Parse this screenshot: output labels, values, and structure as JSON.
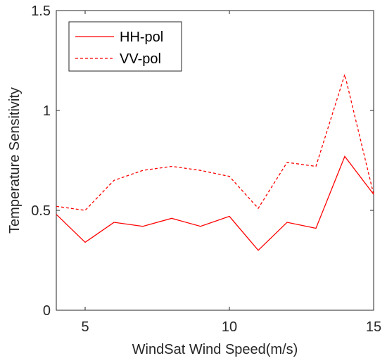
{
  "chart_data": {
    "type": "line",
    "title": "",
    "xlabel": "WindSat Wind Speed(m/s)",
    "ylabel": "Temperature Sensitivity",
    "xlim": [
      4,
      15
    ],
    "ylim": [
      0,
      1.5
    ],
    "x_ticks": [
      5,
      10,
      15
    ],
    "x_tick_labels": [
      "5",
      "10",
      "15"
    ],
    "y_ticks": [
      0,
      0.5,
      1,
      1.5
    ],
    "y_tick_labels": [
      "0",
      "0.5",
      "1",
      "1.5"
    ],
    "grid": false,
    "legend_position": "top-left",
    "x": [
      4,
      5,
      6,
      7,
      8,
      9,
      10,
      11,
      12,
      13,
      14,
      15
    ],
    "series": [
      {
        "name": "HH-pol",
        "color": "#ff0000",
        "style": "solid",
        "values": [
          0.48,
          0.34,
          0.44,
          0.42,
          0.46,
          0.42,
          0.47,
          0.3,
          0.44,
          0.41,
          0.77,
          0.58
        ]
      },
      {
        "name": "VV-pol",
        "color": "#ff0000",
        "style": "dashed",
        "values": [
          0.52,
          0.5,
          0.65,
          0.7,
          0.72,
          0.7,
          0.67,
          0.51,
          0.74,
          0.72,
          1.18,
          0.58
        ]
      }
    ]
  }
}
